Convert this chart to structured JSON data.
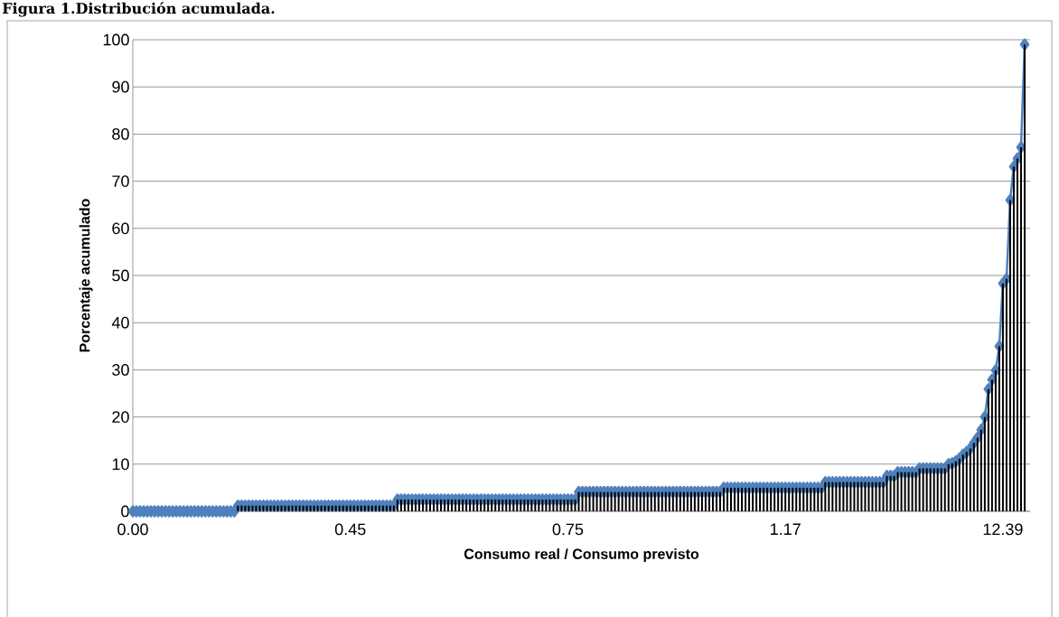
{
  "chart_data": {
    "type": "line",
    "title": "Figura 1.Distribución acumulada.",
    "xlabel": "Consumo real / Consumo previsto",
    "ylabel": "Porcentaje acumulado",
    "categories": [
      "0.00",
      null,
      null,
      null,
      null,
      null,
      null,
      null,
      null,
      null,
      null,
      null,
      null,
      null,
      null,
      null,
      null,
      null,
      null,
      null,
      null,
      null,
      null,
      null,
      null,
      null,
      null,
      null,
      null,
      null,
      null,
      null,
      null,
      null,
      null,
      null,
      null,
      null,
      null,
      null,
      null,
      null,
      null,
      null,
      null,
      null,
      null,
      null,
      null,
      null,
      null,
      null,
      null,
      null,
      null,
      null,
      null,
      null,
      null,
      null,
      "0.45",
      null,
      null,
      null,
      null,
      null,
      null,
      null,
      null,
      null,
      null,
      null,
      null,
      null,
      null,
      null,
      null,
      null,
      null,
      null,
      null,
      null,
      null,
      null,
      null,
      null,
      null,
      null,
      null,
      null,
      null,
      null,
      null,
      null,
      null,
      null,
      null,
      null,
      null,
      null,
      null,
      null,
      null,
      null,
      null,
      null,
      null,
      null,
      null,
      null,
      null,
      null,
      null,
      null,
      null,
      null,
      null,
      null,
      null,
      null,
      "0.75",
      null,
      null,
      null,
      null,
      null,
      null,
      null,
      null,
      null,
      null,
      null,
      null,
      null,
      null,
      null,
      null,
      null,
      null,
      null,
      null,
      null,
      null,
      null,
      null,
      null,
      null,
      null,
      null,
      null,
      null,
      null,
      null,
      null,
      null,
      null,
      null,
      null,
      null,
      null,
      null,
      null,
      null,
      null,
      null,
      null,
      null,
      null,
      null,
      null,
      null,
      null,
      null,
      null,
      null,
      null,
      null,
      null,
      null,
      null,
      "1.17",
      null,
      null,
      null,
      null,
      null,
      null,
      null,
      null,
      null,
      null,
      null,
      null,
      null,
      null,
      null,
      null,
      null,
      null,
      null,
      null,
      null,
      null,
      null,
      null,
      null,
      null,
      null,
      null,
      null,
      null,
      null,
      null,
      null,
      null,
      null,
      null,
      null,
      null,
      null,
      null,
      null,
      null,
      null,
      null,
      null,
      null,
      null,
      null,
      null,
      null,
      null,
      null,
      null,
      null,
      null,
      null,
      null,
      null,
      null,
      "12.39",
      null,
      null,
      null,
      null,
      null,
      null
    ],
    "series": [
      {
        "color": "#4f81bd",
        "marker": "diamond",
        "values": [
          0,
          0,
          0,
          0,
          0,
          0,
          0,
          0,
          0,
          0,
          0,
          0,
          0,
          0,
          0,
          0,
          0,
          0,
          0,
          0,
          0,
          0,
          0,
          0,
          0,
          0,
          0,
          0,
          0,
          1.2,
          1.2,
          1.2,
          1.2,
          1.2,
          1.2,
          1.2,
          1.2,
          1.2,
          1.2,
          1.2,
          1.2,
          1.2,
          1.2,
          1.2,
          1.2,
          1.2,
          1.2,
          1.2,
          1.2,
          1.2,
          1.2,
          1.2,
          1.2,
          1.2,
          1.2,
          1.2,
          1.2,
          1.2,
          1.2,
          1.2,
          1.2,
          1.2,
          1.2,
          1.2,
          1.2,
          1.2,
          1.2,
          1.2,
          1.2,
          1.2,
          1.2,
          1.2,
          1.2,
          2.5,
          2.5,
          2.5,
          2.5,
          2.5,
          2.5,
          2.5,
          2.5,
          2.5,
          2.5,
          2.5,
          2.5,
          2.5,
          2.5,
          2.5,
          2.5,
          2.5,
          2.5,
          2.5,
          2.5,
          2.5,
          2.5,
          2.5,
          2.5,
          2.5,
          2.5,
          2.5,
          2.5,
          2.5,
          2.5,
          2.5,
          2.5,
          2.5,
          2.5,
          2.5,
          2.5,
          2.5,
          2.5,
          2.5,
          2.5,
          2.5,
          2.5,
          2.5,
          2.5,
          2.5,
          2.5,
          2.5,
          2.5,
          2.5,
          2.5,
          4.1,
          4.1,
          4.1,
          4.1,
          4.1,
          4.1,
          4.1,
          4.1,
          4.1,
          4.1,
          4.1,
          4.1,
          4.1,
          4.1,
          4.1,
          4.1,
          4.1,
          4.1,
          4.1,
          4.1,
          4.1,
          4.1,
          4.1,
          4.1,
          4.1,
          4.1,
          4.1,
          4.1,
          4.1,
          4.1,
          4.1,
          4.1,
          4.1,
          4.1,
          4.1,
          4.1,
          4.1,
          4.1,
          4.1,
          4.1,
          5,
          5,
          5,
          5,
          5,
          5,
          5,
          5,
          5,
          5,
          5,
          5,
          5,
          5,
          5,
          5,
          5,
          5,
          5,
          5,
          5,
          5,
          5,
          5,
          5,
          5,
          5,
          5,
          6.2,
          6.2,
          6.2,
          6.2,
          6.2,
          6.2,
          6.2,
          6.2,
          6.2,
          6.2,
          6.2,
          6.2,
          6.2,
          6.2,
          6.2,
          6.2,
          6.2,
          7.5,
          7.5,
          7.5,
          8.3,
          8.3,
          8.3,
          8.3,
          8.3,
          8.3,
          9.1,
          9.1,
          9.1,
          9.1,
          9.1,
          9.1,
          9.1,
          9.1,
          10,
          10.2,
          10.6,
          11.2,
          12,
          12.6,
          13.3,
          14.5,
          15.6,
          17.3,
          20,
          25.9,
          27.9,
          29.9,
          35,
          48.3,
          49.3,
          66,
          73.1,
          74.8,
          77.2,
          99
        ]
      },
      {
        "type": "bar",
        "color": "#000000",
        "values": [
          0,
          0,
          0,
          0,
          0,
          0,
          0,
          0,
          0,
          0,
          0,
          0,
          0,
          0,
          0,
          0,
          0,
          0,
          0,
          0,
          0,
          0,
          0,
          0,
          0,
          0,
          0,
          0,
          0,
          1.2,
          1.2,
          1.2,
          1.2,
          1.2,
          1.2,
          1.2,
          1.2,
          1.2,
          1.2,
          1.2,
          1.2,
          1.2,
          1.2,
          1.2,
          1.2,
          1.2,
          1.2,
          1.2,
          1.2,
          1.2,
          1.2,
          1.2,
          1.2,
          1.2,
          1.2,
          1.2,
          1.2,
          1.2,
          1.2,
          1.2,
          1.2,
          1.2,
          1.2,
          1.2,
          1.2,
          1.2,
          1.2,
          1.2,
          1.2,
          1.2,
          1.2,
          1.2,
          1.2,
          2.5,
          2.5,
          2.5,
          2.5,
          2.5,
          2.5,
          2.5,
          2.5,
          2.5,
          2.5,
          2.5,
          2.5,
          2.5,
          2.5,
          2.5,
          2.5,
          2.5,
          2.5,
          2.5,
          2.5,
          2.5,
          2.5,
          2.5,
          2.5,
          2.5,
          2.5,
          2.5,
          2.5,
          2.5,
          2.5,
          2.5,
          2.5,
          2.5,
          2.5,
          2.5,
          2.5,
          2.5,
          2.5,
          2.5,
          2.5,
          2.5,
          2.5,
          2.5,
          2.5,
          2.5,
          2.5,
          2.5,
          2.5,
          2.5,
          2.5,
          4.1,
          4.1,
          4.1,
          4.1,
          4.1,
          4.1,
          4.1,
          4.1,
          4.1,
          4.1,
          4.1,
          4.1,
          4.1,
          4.1,
          4.1,
          4.1,
          4.1,
          4.1,
          4.1,
          4.1,
          4.1,
          4.1,
          4.1,
          4.1,
          4.1,
          4.1,
          4.1,
          4.1,
          4.1,
          4.1,
          4.1,
          4.1,
          4.1,
          4.1,
          4.1,
          4.1,
          4.1,
          4.1,
          4.1,
          4.1,
          5,
          5,
          5,
          5,
          5,
          5,
          5,
          5,
          5,
          5,
          5,
          5,
          5,
          5,
          5,
          5,
          5,
          5,
          5,
          5,
          5,
          5,
          5,
          5,
          5,
          5,
          5,
          5,
          6.2,
          6.2,
          6.2,
          6.2,
          6.2,
          6.2,
          6.2,
          6.2,
          6.2,
          6.2,
          6.2,
          6.2,
          6.2,
          6.2,
          6.2,
          6.2,
          6.2,
          7.5,
          7.5,
          7.5,
          8.3,
          8.3,
          8.3,
          8.3,
          8.3,
          8.3,
          9.1,
          9.1,
          9.1,
          9.1,
          9.1,
          9.1,
          9.1,
          9.1,
          10,
          10.2,
          10.6,
          11.2,
          12,
          12.6,
          13.3,
          14.5,
          15.6,
          17.3,
          20,
          25.9,
          27.9,
          29.9,
          35,
          48.3,
          49.3,
          66,
          73.1,
          74.8,
          77.2,
          99
        ]
      }
    ],
    "ylim": [
      0,
      100
    ],
    "yticks": [
      0,
      10,
      20,
      30,
      40,
      50,
      60,
      70,
      80,
      90,
      100
    ],
    "grid": "y"
  }
}
